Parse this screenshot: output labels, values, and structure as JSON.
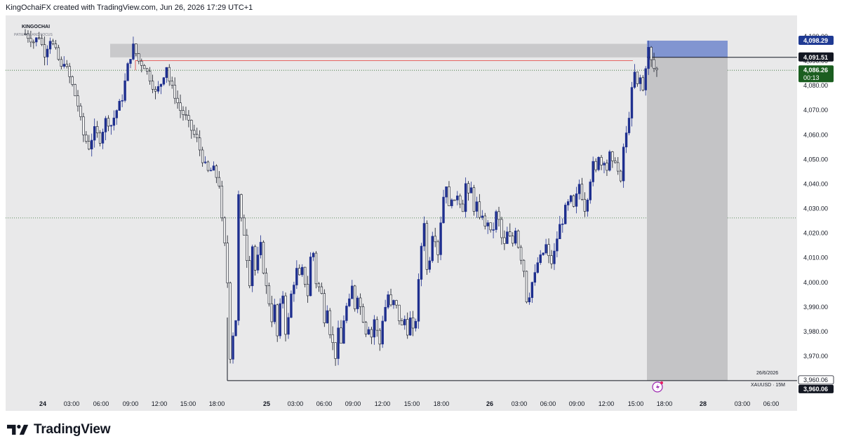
{
  "header": {
    "caption": "KingOchaiFX created with TradingView.com, Jun 26, 2026 17:29 UTC+1"
  },
  "watermark": {
    "name": "KINGOCHAI",
    "tagline": "PATIENCE AND FOCUS"
  },
  "footer": {
    "brand": "TradingView"
  },
  "symbol_label": "XAUUSD · 15M",
  "date_label": "26/6/2026",
  "colors": {
    "up": "#1e2f8f",
    "down": "#131722",
    "background": "#e9e9ea",
    "zone": "#c9c9cb",
    "tp_zone": "#6f86cc",
    "red_line": "#e53935",
    "price_badge": "#1b5e20",
    "stop_badge": "#1f3a93"
  },
  "chart_data": {
    "type": "candlestick",
    "symbol": "XAUUSD",
    "timeframe": "15M",
    "y_ticks": [
      "4,100.00",
      "4,090.00",
      "4,080.00",
      "4,070.00",
      "4,060.00",
      "4,050.00",
      "4,040.00",
      "4,030.00",
      "4,020.00",
      "4,010.00",
      "4,000.00",
      "3,990.00",
      "3,980.00",
      "3,970.00"
    ],
    "ylim": [
      3955,
      4103
    ],
    "x_ticks": [
      {
        "label": "24",
        "bold": true
      },
      {
        "label": "03:00"
      },
      {
        "label": "06:00"
      },
      {
        "label": "09:00"
      },
      {
        "label": "12:00"
      },
      {
        "label": "15:00"
      },
      {
        "label": "18:00"
      },
      {
        "label": "25",
        "bold": true
      },
      {
        "label": "03:00"
      },
      {
        "label": "06:00"
      },
      {
        "label": "09:00"
      },
      {
        "label": "12:00"
      },
      {
        "label": "15:00"
      },
      {
        "label": "18:00"
      },
      {
        "label": "26",
        "bold": true
      },
      {
        "label": "03:00"
      },
      {
        "label": "06:00"
      },
      {
        "label": "09:00"
      },
      {
        "label": "12:00"
      },
      {
        "label": "15:00"
      },
      {
        "label": "18:00"
      },
      {
        "label": "28",
        "bold": true
      },
      {
        "label": "03:00"
      },
      {
        "label": "06:00"
      }
    ],
    "price_labels": {
      "take_profit": "4,098.29",
      "entry": "4,091.51",
      "current_price": "4,086.26",
      "countdown": "00:13",
      "stop_level": "3,960.06",
      "stop_level_repeat": "3,960.06"
    },
    "levels": {
      "take_profit": 4098.29,
      "entry": 4091.51,
      "current": 4086.26,
      "stop": 3960.06,
      "supply_top": 4097,
      "supply_bottom": 4091.5,
      "red_line": 4090.2,
      "dotted_upper": 4086.26,
      "dotted_lower": 4026.2
    },
    "path": [
      [
        0,
        4101
      ],
      [
        3,
        4098
      ],
      [
        5,
        4100
      ],
      [
        7,
        4093
      ],
      [
        9,
        4099
      ],
      [
        11,
        4094
      ],
      [
        13,
        4087
      ],
      [
        14,
        4090
      ],
      [
        17,
        4080
      ],
      [
        19,
        4072
      ],
      [
        21,
        4060
      ],
      [
        23,
        4055
      ],
      [
        25,
        4062
      ],
      [
        27,
        4058
      ],
      [
        29,
        4066
      ],
      [
        31,
        4064
      ],
      [
        33,
        4070
      ],
      [
        35,
        4075
      ],
      [
        37,
        4088
      ],
      [
        39,
        4096
      ],
      [
        41,
        4090
      ],
      [
        43,
        4088
      ],
      [
        45,
        4083
      ],
      [
        47,
        4077
      ],
      [
        49,
        4081
      ],
      [
        51,
        4088
      ],
      [
        52,
        4082
      ],
      [
        54,
        4076
      ],
      [
        56,
        4070
      ],
      [
        58,
        4067
      ],
      [
        60,
        4062
      ],
      [
        62,
        4058
      ],
      [
        64,
        4050
      ],
      [
        66,
        4045
      ],
      [
        68,
        4046
      ],
      [
        70,
        4040
      ],
      [
        71,
        4025
      ],
      [
        72,
        4015
      ],
      [
        73,
        4000
      ],
      [
        74,
        3970
      ],
      [
        75,
        3979
      ],
      [
        76,
        3985
      ],
      [
        77,
        4035
      ],
      [
        78,
        4025
      ],
      [
        79,
        4020
      ],
      [
        80,
        4010
      ],
      [
        81,
        4000
      ],
      [
        82,
        4015
      ],
      [
        83,
        4005
      ],
      [
        84,
        4010
      ],
      [
        85,
        4015
      ],
      [
        86,
        4005
      ],
      [
        87,
        3998
      ],
      [
        88,
        3992
      ],
      [
        89,
        3985
      ],
      [
        90,
        3990
      ],
      [
        91,
        3978
      ],
      [
        92,
        3990
      ],
      [
        93,
        3995
      ],
      [
        94,
        3980
      ],
      [
        95,
        3985
      ],
      [
        96,
        3995
      ],
      [
        97,
        4000
      ],
      [
        98,
        4005
      ],
      [
        99,
        4002
      ],
      [
        100,
        4005
      ],
      [
        101,
        4000
      ],
      [
        102,
        3995
      ],
      [
        103,
        4010
      ],
      [
        104,
        4012
      ],
      [
        105,
        4000
      ],
      [
        106,
        3998
      ],
      [
        107,
        3995
      ],
      [
        108,
        3985
      ],
      [
        109,
        3990
      ],
      [
        110,
        3980
      ],
      [
        111,
        3975
      ],
      [
        112,
        3970
      ],
      [
        113,
        3980
      ],
      [
        114,
        3975
      ],
      [
        115,
        3985
      ],
      [
        116,
        3990
      ],
      [
        117,
        3992
      ],
      [
        118,
        3998
      ],
      [
        119,
        3990
      ],
      [
        120,
        3995
      ],
      [
        121,
        3990
      ],
      [
        122,
        3985
      ],
      [
        123,
        3980
      ],
      [
        124,
        3982
      ],
      [
        125,
        3978
      ],
      [
        126,
        3985
      ],
      [
        127,
        3980
      ],
      [
        128,
        3975
      ],
      [
        129,
        3985
      ],
      [
        130,
        3990
      ],
      [
        131,
        3995
      ],
      [
        132,
        3990
      ],
      [
        133,
        3992
      ],
      [
        134,
        3990
      ],
      [
        135,
        3985
      ],
      [
        136,
        3982
      ],
      [
        137,
        3985
      ],
      [
        138,
        3980
      ],
      [
        139,
        3985
      ],
      [
        140,
        3980
      ],
      [
        141,
        3985
      ],
      [
        142,
        4000
      ],
      [
        143,
        4015
      ],
      [
        144,
        4025
      ],
      [
        145,
        4005
      ],
      [
        146,
        4010
      ],
      [
        147,
        4020
      ],
      [
        148,
        4018
      ],
      [
        149,
        4012
      ],
      [
        150,
        4025
      ],
      [
        151,
        4035
      ],
      [
        152,
        4040
      ],
      [
        153,
        4030
      ],
      [
        154,
        4035
      ],
      [
        155,
        4032
      ],
      [
        156,
        4036
      ],
      [
        157,
        4033
      ],
      [
        158,
        4030
      ],
      [
        159,
        4040
      ],
      [
        160,
        4035
      ],
      [
        161,
        4038
      ],
      [
        162,
        4030
      ],
      [
        163,
        4032
      ],
      [
        164,
        4025
      ],
      [
        165,
        4028
      ],
      [
        166,
        4022
      ],
      [
        167,
        4025
      ],
      [
        168,
        4020
      ],
      [
        169,
        4022
      ],
      [
        170,
        4028
      ],
      [
        171,
        4025
      ],
      [
        172,
        4018
      ],
      [
        173,
        4015
      ],
      [
        174,
        4020
      ],
      [
        175,
        4018
      ],
      [
        176,
        4016
      ],
      [
        177,
        4022
      ],
      [
        178,
        4015
      ],
      [
        179,
        4010
      ],
      [
        180,
        4005
      ],
      [
        181,
        3993
      ],
      [
        182,
        3995
      ],
      [
        183,
        4000
      ],
      [
        184,
        4003
      ],
      [
        185,
        4008
      ],
      [
        186,
        4010
      ],
      [
        187,
        4012
      ],
      [
        188,
        4015
      ],
      [
        189,
        4010
      ],
      [
        190,
        4008
      ],
      [
        191,
        4012
      ],
      [
        192,
        4018
      ],
      [
        193,
        4023
      ],
      [
        194,
        4025
      ],
      [
        195,
        4030
      ],
      [
        196,
        4032
      ],
      [
        197,
        4034
      ],
      [
        198,
        4030
      ],
      [
        199,
        4035
      ],
      [
        200,
        4040
      ],
      [
        201,
        4035
      ],
      [
        202,
        4030
      ],
      [
        203,
        4035
      ],
      [
        204,
        4042
      ],
      [
        205,
        4048
      ],
      [
        206,
        4045
      ],
      [
        207,
        4052
      ],
      [
        208,
        4048
      ],
      [
        209,
        4050
      ],
      [
        210,
        4046
      ],
      [
        211,
        4052
      ],
      [
        212,
        4048
      ],
      [
        213,
        4050
      ],
      [
        214,
        4045
      ],
      [
        215,
        4040
      ],
      [
        216,
        4055
      ],
      [
        217,
        4060
      ],
      [
        218,
        4068
      ],
      [
        219,
        4078
      ],
      [
        220,
        4085
      ],
      [
        221,
        4080
      ],
      [
        222,
        4083
      ],
      [
        223,
        4078
      ],
      [
        224,
        4088
      ],
      [
        225,
        4095
      ],
      [
        226,
        4090
      ],
      [
        227,
        4087
      ],
      [
        228,
        4086.26
      ]
    ]
  }
}
